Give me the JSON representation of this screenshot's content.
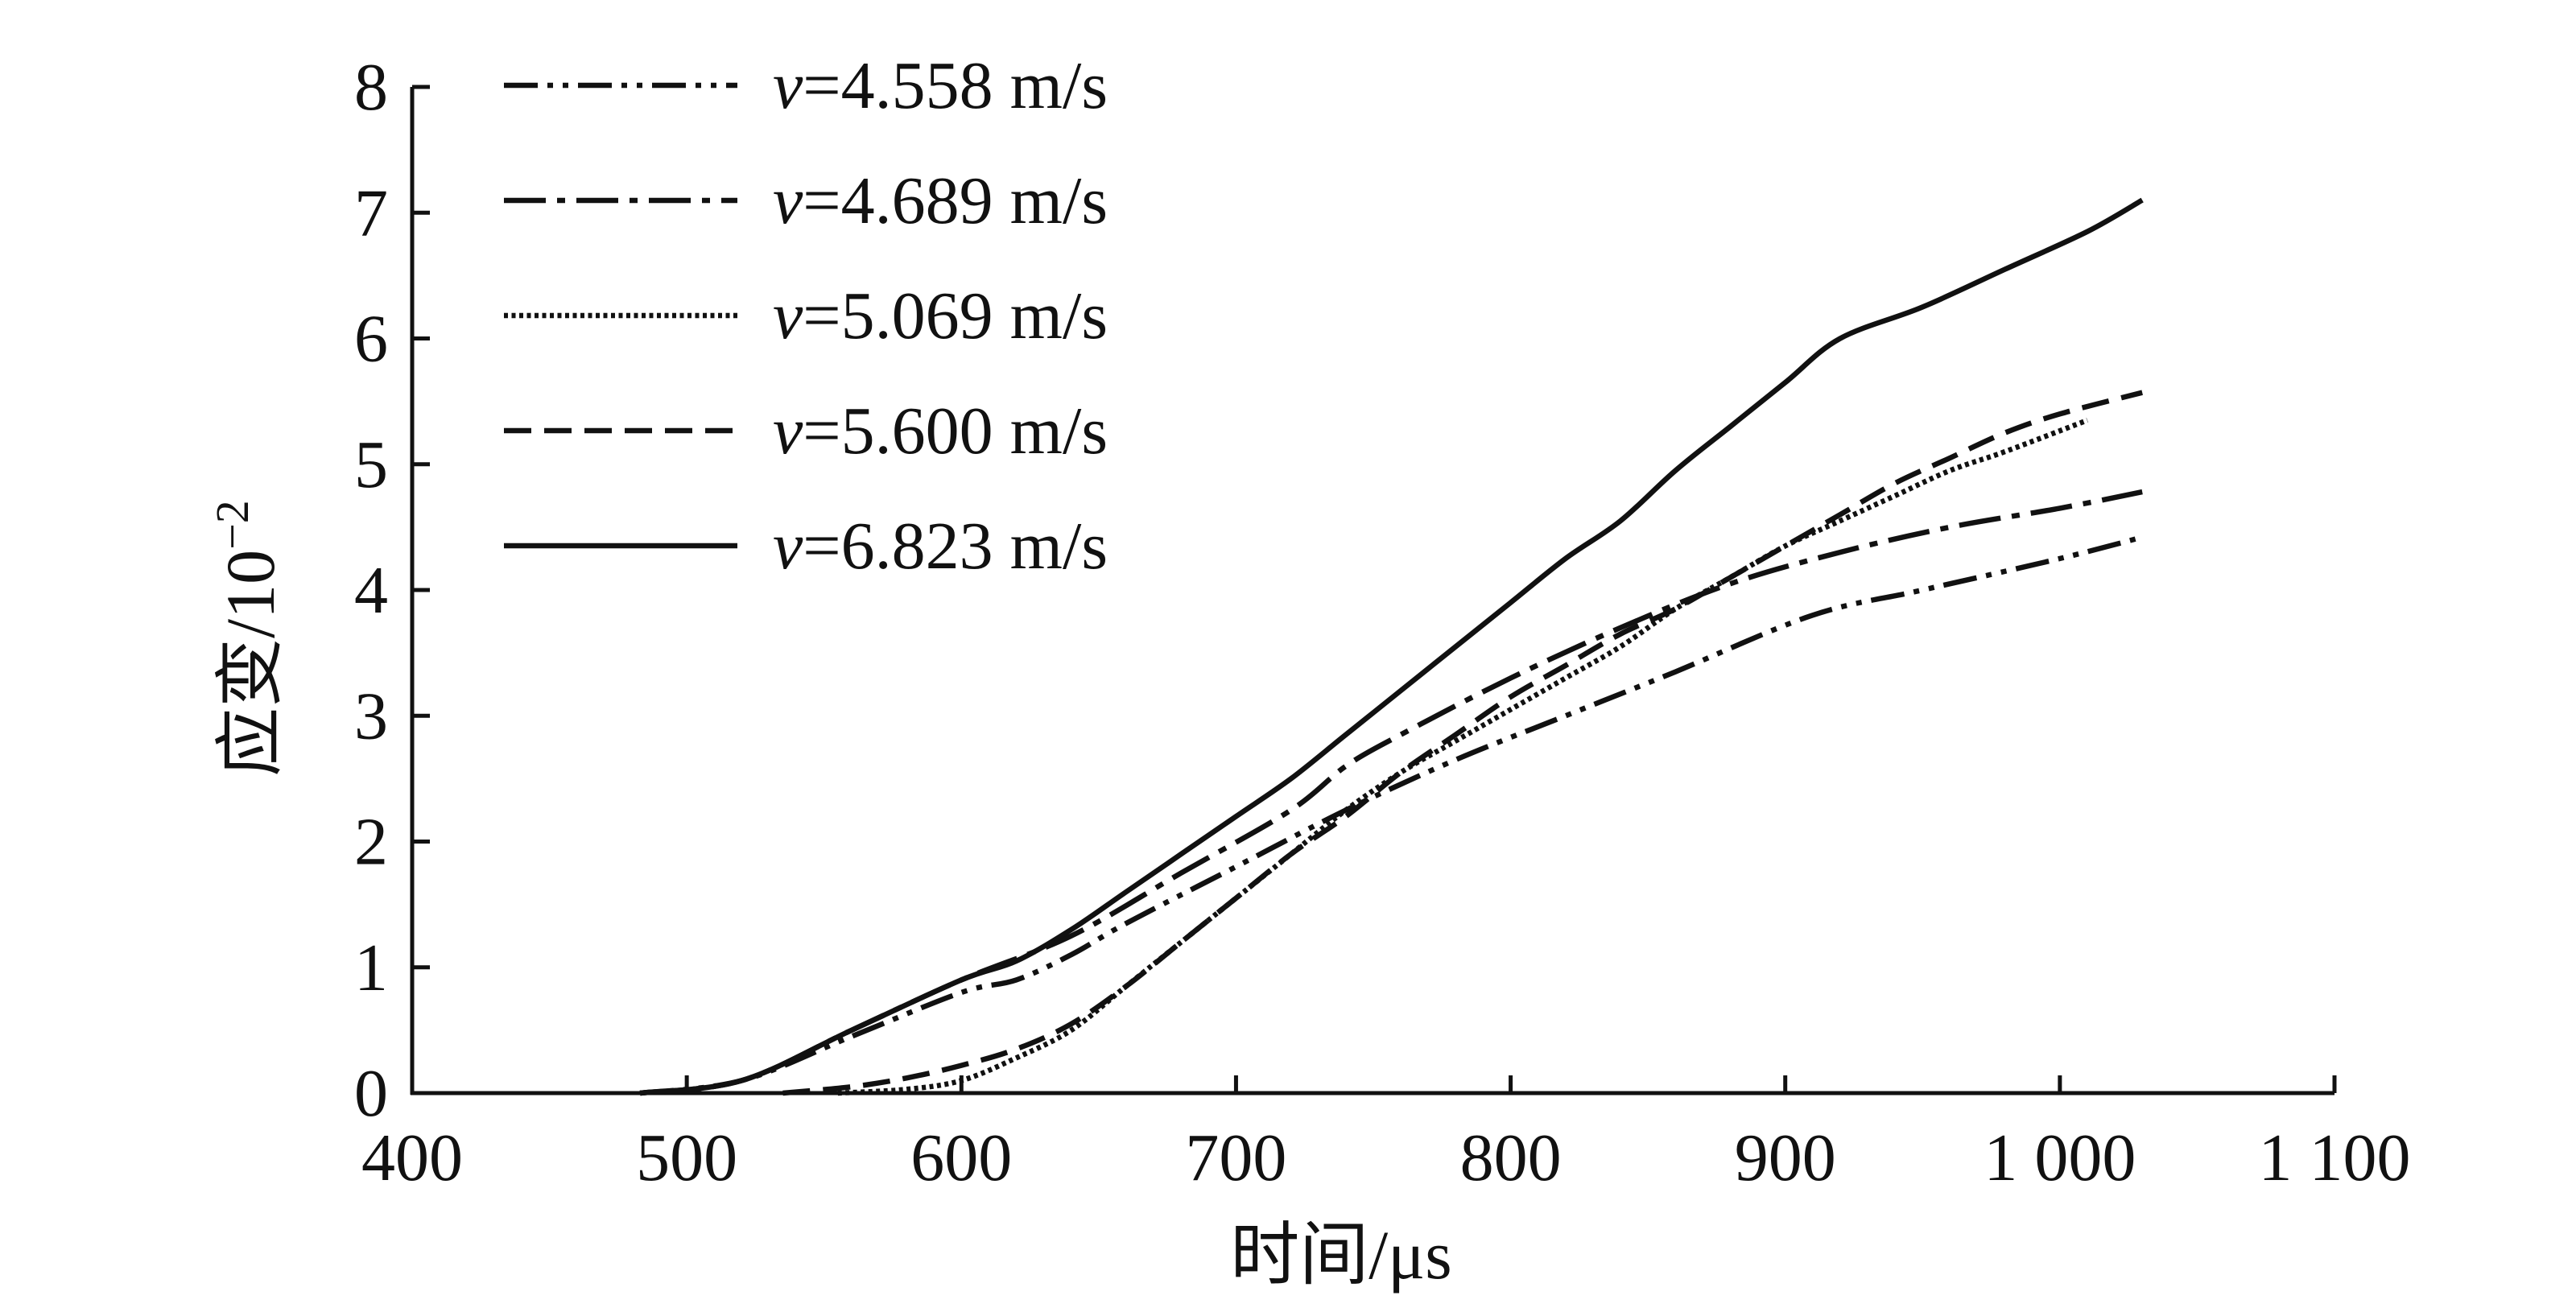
{
  "chart_data": {
    "type": "line",
    "xlabel": "时间/μs",
    "ylabel_main": "应变/10",
    "ylabel_exponent": "−2",
    "xlim": [
      400,
      1100
    ],
    "ylim": [
      0,
      8
    ],
    "xticks": [
      400,
      500,
      600,
      700,
      800,
      900,
      1000,
      1100
    ],
    "xtick_labels": [
      "400",
      "500",
      "600",
      "700",
      "800",
      "900",
      "1 000",
      "1 100"
    ],
    "yticks": [
      0,
      1,
      2,
      3,
      4,
      5,
      6,
      7,
      8
    ],
    "ytick_labels": [
      "0",
      "1",
      "2",
      "3",
      "4",
      "5",
      "6",
      "7",
      "8"
    ],
    "grid": false,
    "legend_position": "top-left",
    "series": [
      {
        "name": "v=4.558 m/s",
        "var": "v",
        "rest": "=4.558 m/s",
        "dash": "dash-dot-dot",
        "x": [
          483,
          520,
          560,
          600,
          620,
          640,
          660,
          700,
          740,
          780,
          820,
          860,
          910,
          950,
          1000,
          1030
        ],
        "y": [
          0,
          0.1,
          0.45,
          0.8,
          0.9,
          1.1,
          1.35,
          1.8,
          2.25,
          2.65,
          3.0,
          3.35,
          3.8,
          4.0,
          4.25,
          4.42
        ]
      },
      {
        "name": "v=4.689 m/s",
        "var": "v",
        "rest": "=4.689 m/s",
        "dash": "long-dash-dot",
        "x": [
          483,
          520,
          560,
          600,
          640,
          680,
          720,
          740,
          760,
          800,
          840,
          880,
          920,
          960,
          1000,
          1030
        ],
        "y": [
          0,
          0.1,
          0.5,
          0.9,
          1.25,
          1.75,
          2.25,
          2.6,
          2.85,
          3.3,
          3.7,
          4.05,
          4.3,
          4.5,
          4.65,
          4.78
        ]
      },
      {
        "name": "v=5.069 m/s",
        "var": "v",
        "rest": "=5.069 m/s",
        "dash": "dotted",
        "x": [
          555,
          580,
          600,
          620,
          640,
          660,
          680,
          700,
          720,
          740,
          760,
          780,
          800,
          820,
          840,
          860,
          880,
          900,
          920,
          940,
          960,
          980,
          1010
        ],
        "y": [
          0,
          0.03,
          0.1,
          0.28,
          0.5,
          0.85,
          1.2,
          1.55,
          1.9,
          2.25,
          2.55,
          2.8,
          3.05,
          3.3,
          3.55,
          3.85,
          4.1,
          4.35,
          4.55,
          4.75,
          4.95,
          5.1,
          5.35
        ]
      },
      {
        "name": "v=5.600 m/s",
        "var": "v",
        "rest": "=5.600 m/s",
        "dash": "dashed",
        "x": [
          535,
          560,
          580,
          600,
          620,
          640,
          660,
          680,
          700,
          720,
          740,
          760,
          780,
          800,
          820,
          840,
          860,
          880,
          900,
          920,
          940,
          960,
          980,
          1000,
          1030
        ],
        "y": [
          0,
          0.05,
          0.12,
          0.22,
          0.35,
          0.55,
          0.85,
          1.2,
          1.55,
          1.9,
          2.2,
          2.55,
          2.85,
          3.15,
          3.4,
          3.65,
          3.85,
          4.1,
          4.35,
          4.6,
          4.85,
          5.05,
          5.25,
          5.4,
          5.57
        ]
      },
      {
        "name": "v=6.823 m/s",
        "var": "v",
        "rest": "=6.823 m/s",
        "dash": "solid",
        "x": [
          483,
          520,
          560,
          600,
          620,
          640,
          660,
          680,
          700,
          720,
          740,
          760,
          780,
          800,
          820,
          840,
          860,
          880,
          900,
          920,
          950,
          980,
          1010,
          1030
        ],
        "y": [
          0,
          0.1,
          0.5,
          0.9,
          1.05,
          1.3,
          1.6,
          1.9,
          2.2,
          2.5,
          2.85,
          3.2,
          3.55,
          3.9,
          4.25,
          4.55,
          4.95,
          5.3,
          5.65,
          6.0,
          6.25,
          6.55,
          6.85,
          7.1
        ]
      }
    ]
  }
}
